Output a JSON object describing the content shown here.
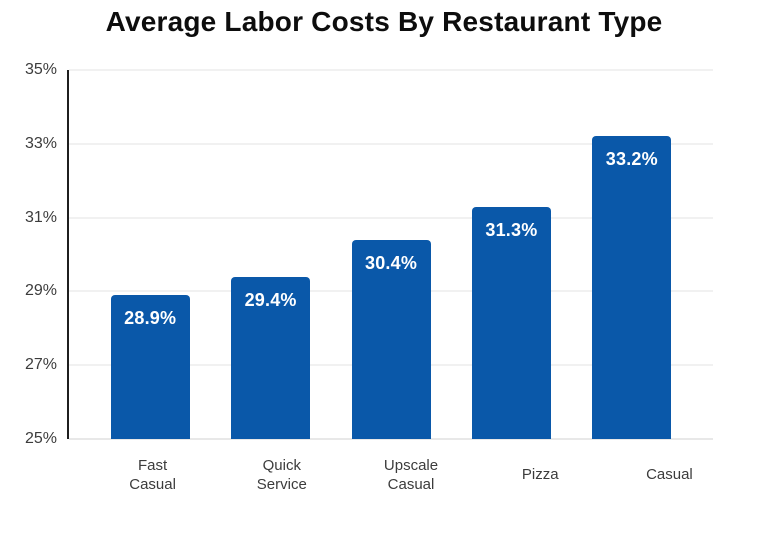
{
  "chart_data": {
    "type": "bar",
    "title": "Average Labor Costs By Restaurant Type",
    "categories": [
      "Fast\nCasual",
      "Quick\nService",
      "Upscale\nCasual",
      "Pizza",
      "Casual"
    ],
    "values": [
      28.9,
      29.4,
      30.4,
      31.3,
      33.2
    ],
    "value_labels": [
      "28.9%",
      "29.4%",
      "30.4%",
      "31.3%",
      "33.2%"
    ],
    "xlabel": "",
    "ylabel": "",
    "ylim": [
      25,
      35
    ],
    "yticks": [
      25,
      27,
      29,
      31,
      33,
      35
    ],
    "ytick_labels": [
      "25%",
      "27%",
      "29%",
      "31%",
      "33%",
      "35%"
    ],
    "grid": true,
    "legend": "none",
    "bar_color": "#0a58a9",
    "value_label_color": "#ffffff",
    "axis_line_color": "#1f1f1f",
    "gridline_color": "#e3e3e3"
  }
}
